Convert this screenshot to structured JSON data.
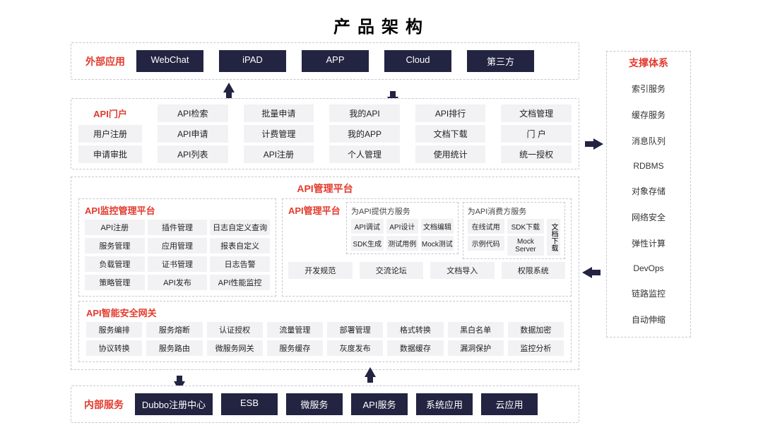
{
  "title": "产品架构",
  "colors": {
    "accent_red": "#e33a2d",
    "dark_navy": "#232442",
    "chip_gray": "#f2f2f4",
    "border_gray": "#c7c7d0",
    "text": "#222222",
    "bg": "#ffffff"
  },
  "external": {
    "label": "外部应用",
    "items": [
      "WebChat",
      "iPAD",
      "APP",
      "Cloud",
      "第三方"
    ]
  },
  "portal": {
    "label": "API门户",
    "row1_labels": [
      "用户注册",
      "申请审批"
    ],
    "columns": [
      [
        "API检索",
        "API申请",
        "API列表"
      ],
      [
        "批量申请",
        "计费管理",
        "API注册"
      ],
      [
        "我的API",
        "我的APP",
        "个人管理"
      ],
      [
        "API排行",
        "文档下载",
        "使用统计"
      ],
      [
        "文档管理",
        "门 户",
        "统一授权"
      ]
    ]
  },
  "mgmt": {
    "title": "API管理平台",
    "monitor": {
      "title": "API监控管理平台",
      "cells": [
        "API注册",
        "插件管理",
        "日志自定义查询",
        "服务管理",
        "应用管理",
        "报表自定义",
        "负载管理",
        "证书管理",
        "日志告警",
        "策略管理",
        "API发布",
        "API性能监控"
      ]
    },
    "right": {
      "title": "API管理平台",
      "provider": {
        "title": "为API提供方服务",
        "cells": [
          "API调试",
          "API设计",
          "文档编辑",
          "SDK生成",
          "测试用例",
          "Mock测试"
        ]
      },
      "consumer": {
        "title": "为API消费方服务",
        "cells": [
          "在线试用",
          "SDK下载",
          "示例代码",
          "Mock Server"
        ],
        "vertical": "文档下载"
      },
      "bottom": [
        "开发规范",
        "交流论坛",
        "文档导入",
        "权限系统"
      ]
    },
    "gateway": {
      "title": "API智能安全网关",
      "cells": [
        "服务编排",
        "服务熔断",
        "认证授权",
        "流量管理",
        "部署管理",
        "格式转换",
        "黑白名单",
        "数据加密",
        "协议转换",
        "服务路由",
        "微服务网关",
        "服务缓存",
        "灰度发布",
        "数据缓存",
        "漏洞保护",
        "监控分析"
      ]
    }
  },
  "internal": {
    "label": "内部服务",
    "items": [
      "Dubbo注册中心",
      "ESB",
      "微服务",
      "API服务",
      "系统应用",
      "云应用"
    ]
  },
  "support": {
    "title": "支撑体系",
    "items": [
      "索引服务",
      "缓存服务",
      "消息队列",
      "RDBMS",
      "对象存储",
      "网络安全",
      "弹性计算",
      "DevOps",
      "链路监控",
      "自动伸缩"
    ]
  }
}
